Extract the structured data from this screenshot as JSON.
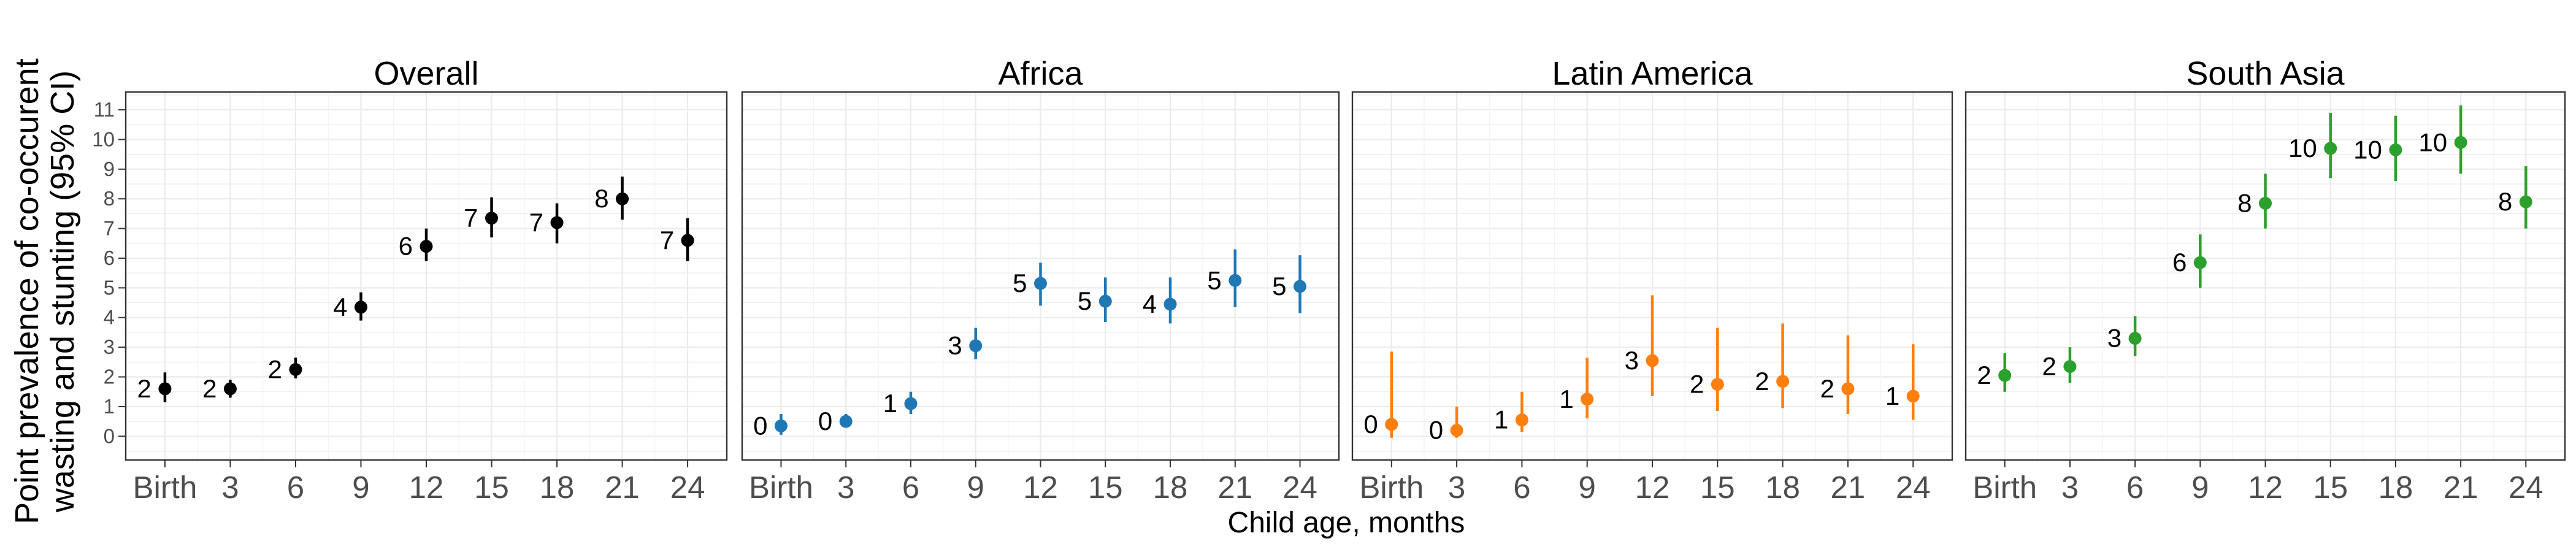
{
  "chart_data": {
    "type": "scatter",
    "subtype": "point-range (estimate with 95% CI error bars)",
    "xlabel": "Child age, months",
    "ylabel": "Point prevalence of co-occurent wasting and stunting (95% CI)",
    "ylabel_lines": [
      "Point prevalence of co-occurent",
      "wasting and stunting (95% CI)"
    ],
    "categories": [
      "Birth",
      "3",
      "6",
      "9",
      "12",
      "15",
      "18",
      "21",
      "24"
    ],
    "ylim": [
      -0.8,
      11.6
    ],
    "yticks": [
      0,
      1,
      2,
      3,
      4,
      5,
      6,
      7,
      8,
      9,
      10,
      11
    ],
    "grid": true,
    "legend": "none",
    "facets": [
      {
        "title": "Overall",
        "color": "#000000",
        "values": [
          1.6,
          1.6,
          2.25,
          4.35,
          6.4,
          7.35,
          7.2,
          8.0,
          6.6
        ],
        "lower": [
          1.15,
          1.3,
          1.95,
          3.9,
          5.9,
          6.7,
          6.5,
          7.3,
          5.9
        ],
        "upper": [
          2.15,
          1.9,
          2.65,
          4.85,
          7.0,
          8.05,
          7.85,
          8.75,
          7.35
        ],
        "labels": [
          "2",
          "2",
          "2",
          "4",
          "6",
          "7",
          "7",
          "8",
          "7"
        ]
      },
      {
        "title": "Africa",
        "color": "#1f78b4",
        "values": [
          0.35,
          0.5,
          1.1,
          3.05,
          5.15,
          4.55,
          4.45,
          5.25,
          5.05
        ],
        "lower": [
          0.05,
          0.3,
          0.75,
          2.6,
          4.4,
          3.85,
          3.8,
          4.35,
          4.15
        ],
        "upper": [
          0.75,
          0.75,
          1.5,
          3.65,
          5.85,
          5.35,
          5.35,
          6.3,
          6.1
        ],
        "labels": [
          "0",
          "0",
          "1",
          "3",
          "5",
          "5",
          "4",
          "5",
          "5"
        ]
      },
      {
        "title": "Latin America",
        "color": "#ff7f0e",
        "values": [
          0.4,
          0.2,
          0.55,
          1.25,
          2.55,
          1.75,
          1.85,
          1.6,
          1.35
        ],
        "lower": [
          -0.05,
          -0.05,
          0.15,
          0.6,
          1.35,
          0.85,
          0.95,
          0.75,
          0.55
        ],
        "upper": [
          2.85,
          1.0,
          1.5,
          2.65,
          4.75,
          3.65,
          3.8,
          3.4,
          3.1
        ],
        "labels": [
          "0",
          "0",
          "1",
          "1",
          "3",
          "2",
          "2",
          "2",
          "1"
        ]
      },
      {
        "title": "South Asia",
        "color": "#2ca02c",
        "values": [
          2.05,
          2.35,
          3.3,
          5.85,
          7.85,
          9.7,
          9.65,
          9.9,
          7.9
        ],
        "lower": [
          1.5,
          1.8,
          2.7,
          5.0,
          7.0,
          8.7,
          8.6,
          8.85,
          7.0
        ],
        "upper": [
          2.8,
          3.0,
          4.05,
          6.8,
          8.85,
          10.9,
          10.8,
          11.15,
          9.1
        ],
        "labels": [
          "2",
          "2",
          "3",
          "6",
          "8",
          "10",
          "10",
          "10",
          "8"
        ]
      }
    ]
  }
}
